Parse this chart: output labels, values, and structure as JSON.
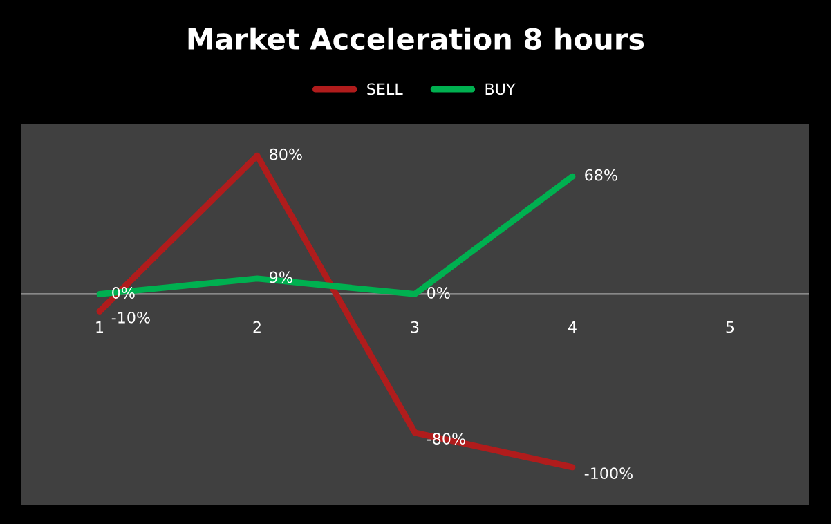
{
  "chart_data": {
    "type": "line",
    "title": "Market Acceleration 8 hours",
    "categories": [
      "1",
      "2",
      "3",
      "4",
      "5"
    ],
    "series": [
      {
        "name": "SELL",
        "color": "#b01c1c",
        "values": [
          -10,
          80,
          -80,
          -100,
          null
        ],
        "value_labels": [
          "-10%",
          "80%",
          "-80%",
          "-100%",
          null
        ]
      },
      {
        "name": "BUY",
        "color": "#00b050",
        "values": [
          0,
          9,
          0,
          68,
          null
        ],
        "value_labels": [
          "0%",
          "9%",
          "0%",
          "68%",
          null
        ]
      }
    ],
    "legend": "top",
    "grid": false,
    "marker": "none",
    "line_style": "solid"
  }
}
